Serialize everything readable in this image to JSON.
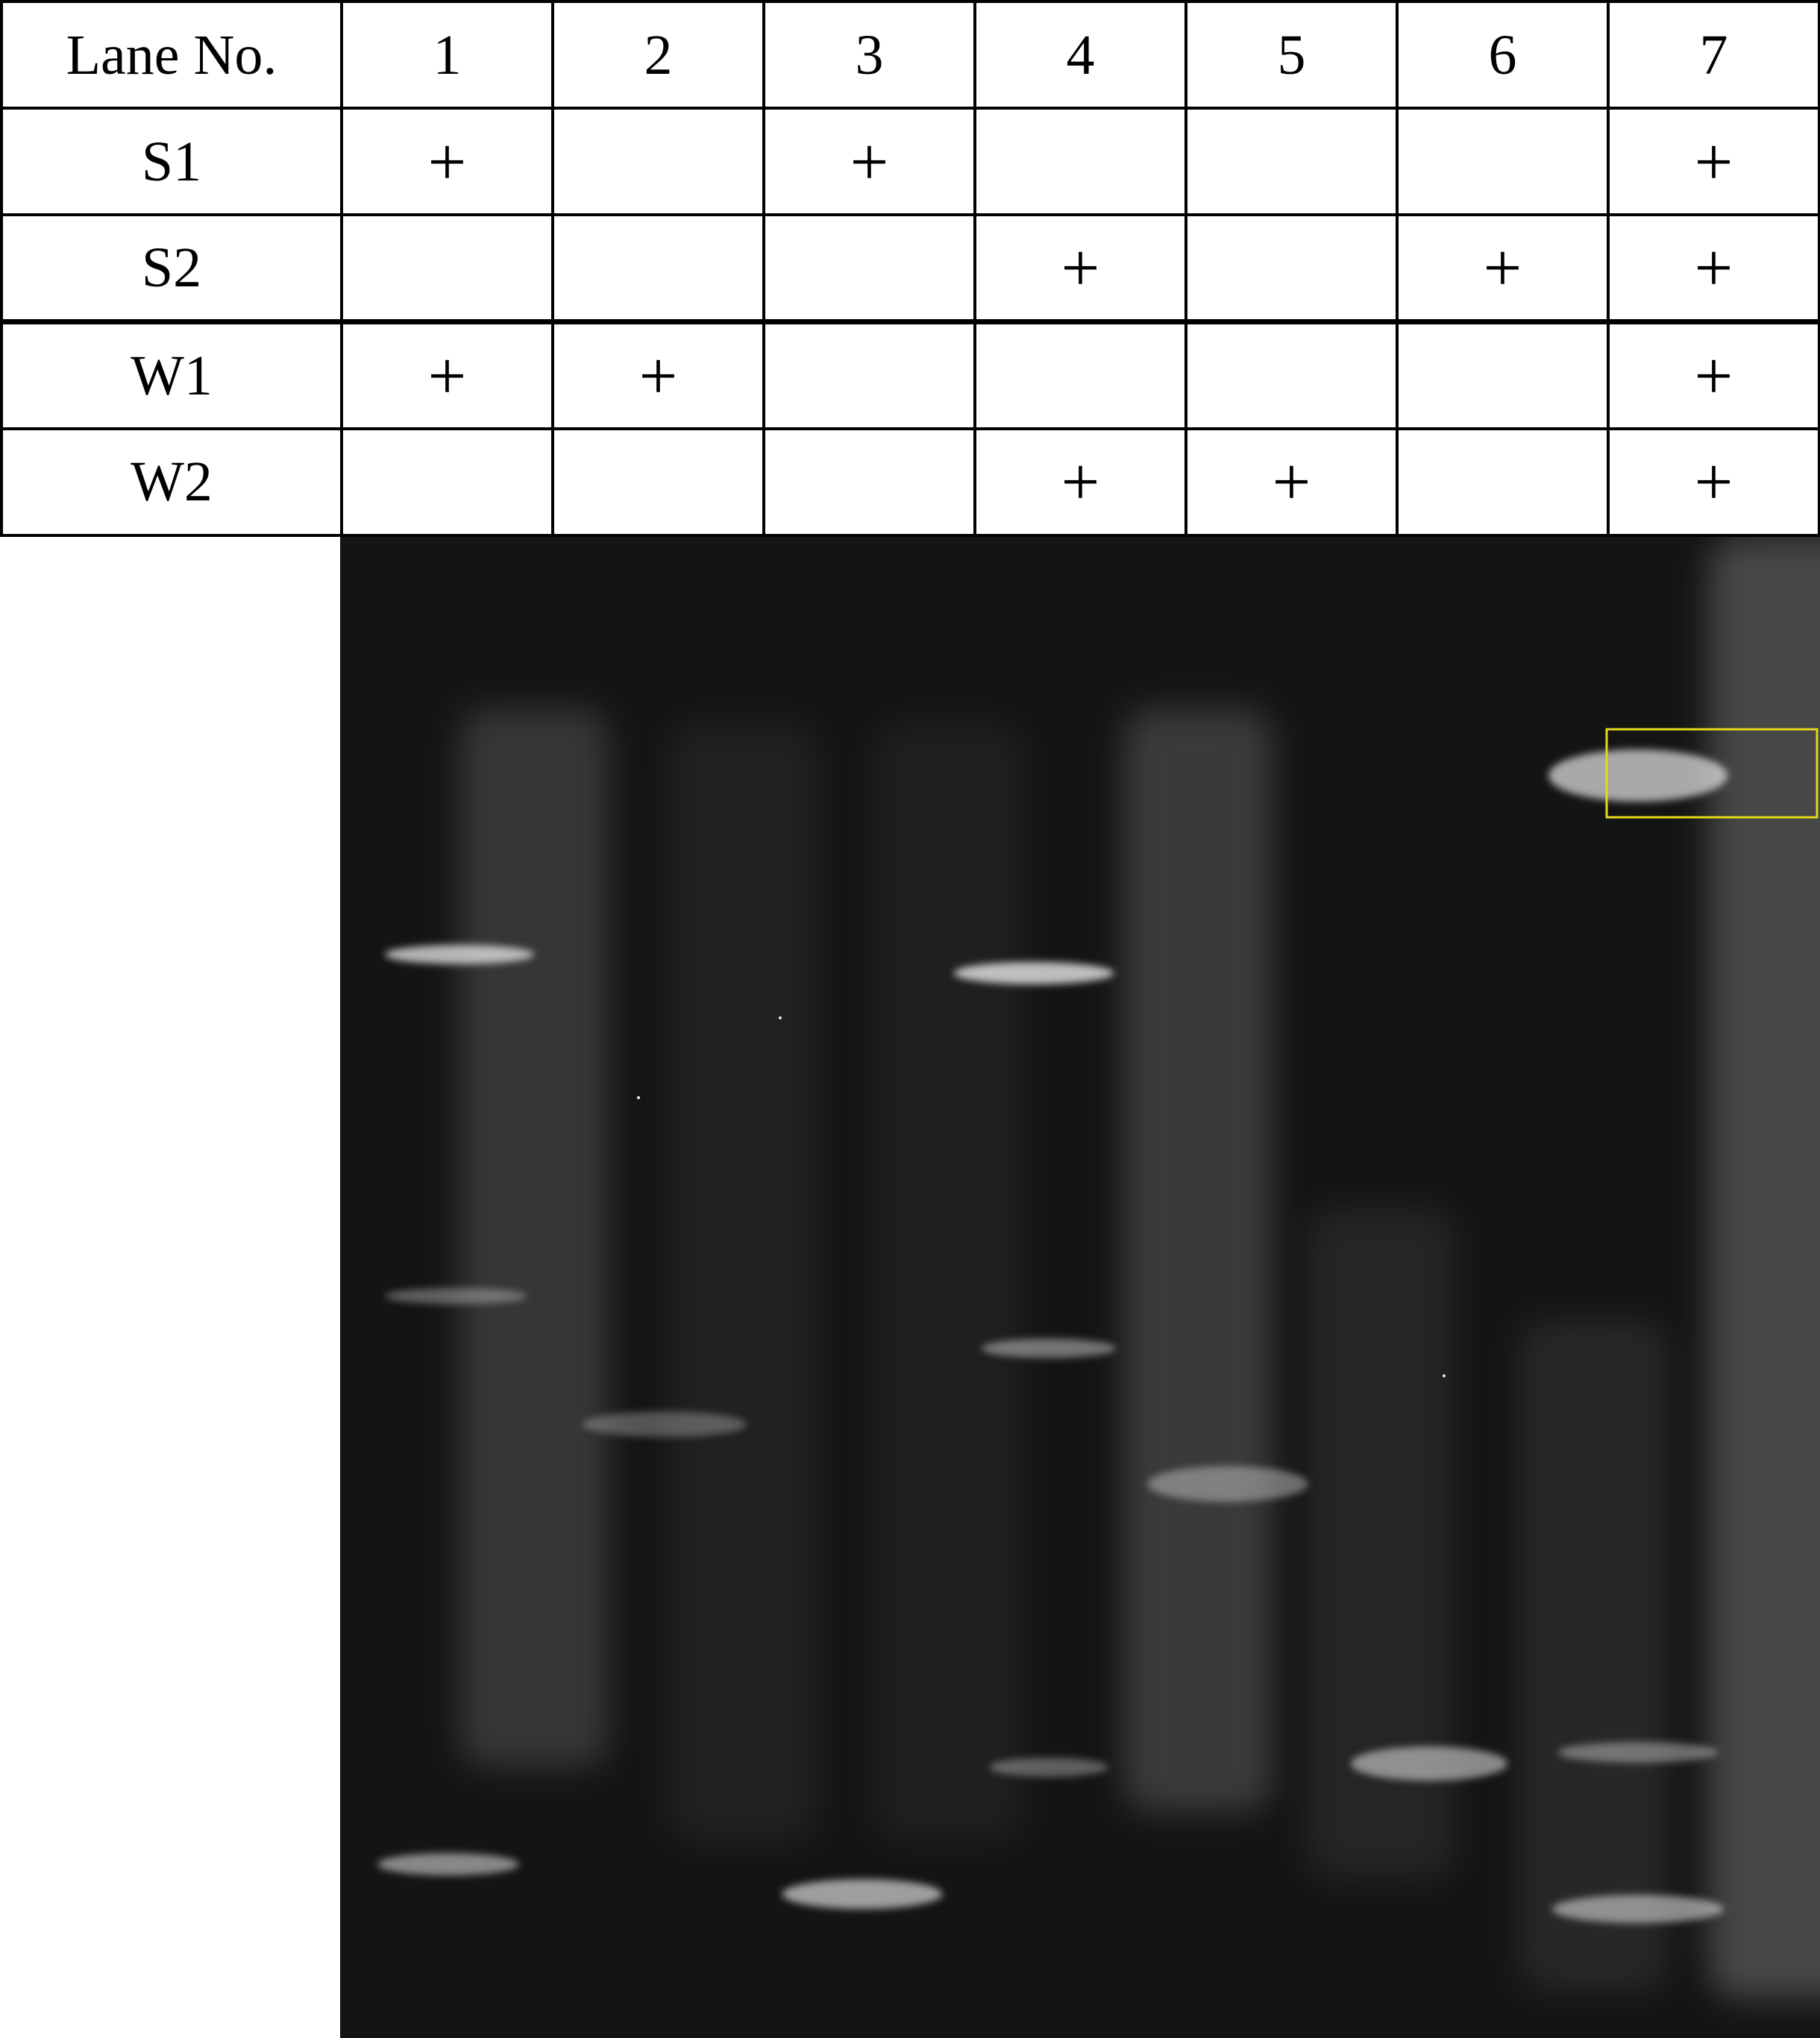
{
  "table": {
    "header_label": "Lane No.",
    "lanes": [
      "1",
      "2",
      "3",
      "4",
      "5",
      "6",
      "7"
    ],
    "rows": [
      {
        "label": "S1",
        "cells": [
          "+",
          "",
          "+",
          "",
          "",
          "",
          "+"
        ]
      },
      {
        "label": "S2",
        "cells": [
          "",
          "",
          "",
          "+",
          "",
          "+",
          "+"
        ]
      },
      {
        "label": "W1",
        "cells": [
          "+",
          "+",
          "",
          "",
          "",
          "",
          "+"
        ]
      },
      {
        "label": "W2",
        "cells": [
          "",
          "",
          "",
          "+",
          "+",
          "",
          "+"
        ]
      }
    ]
  },
  "gel": {
    "background_color": "#131413",
    "band_color": "#e8e8e8",
    "highlight_box_color": "#e6d81a",
    "highlighted_lane": 7
  }
}
